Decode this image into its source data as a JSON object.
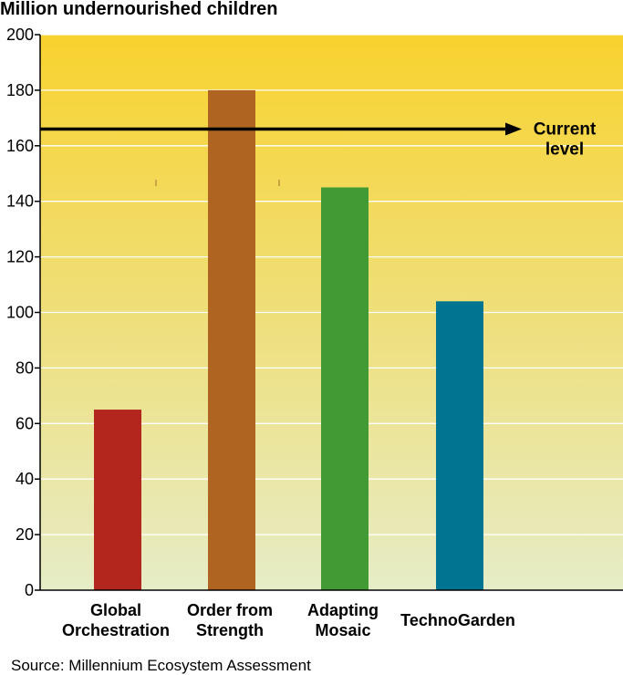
{
  "chart_data": {
    "type": "bar",
    "title": "Million undernourished children",
    "categories": [
      [
        "Global",
        "Orchestration"
      ],
      [
        "Order from",
        "Strength"
      ],
      [
        "Adapting",
        "Mosaic"
      ],
      [
        "TechnoGarden"
      ]
    ],
    "values": [
      65,
      180,
      145,
      104
    ],
    "bar_colors": [
      "#b3261e",
      "#b06422",
      "#429a35",
      "#007490"
    ],
    "ylim": [
      0,
      200
    ],
    "yticks": [
      0,
      20,
      40,
      60,
      80,
      100,
      120,
      140,
      160,
      180,
      200
    ],
    "grid": true,
    "background_gradient": [
      "#f8d22e",
      "#e6ecc6"
    ],
    "reference_line": {
      "value": 166,
      "label": [
        "Current",
        "level"
      ],
      "color": "#000000"
    },
    "source": "Source: Millennium Ecosystem Assessment"
  }
}
